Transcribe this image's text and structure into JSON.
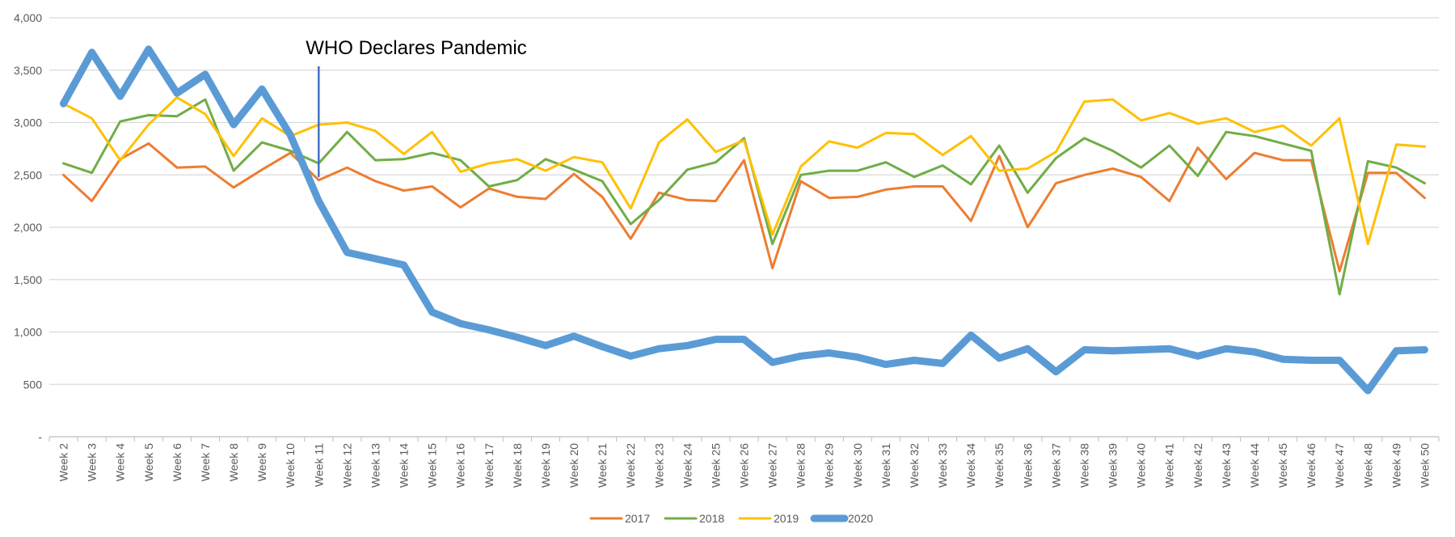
{
  "chart_data": {
    "type": "line",
    "annotation": "WHO Declares Pandemic",
    "annotation_category": "Week 11",
    "ylim": [
      0,
      4000
    ],
    "yticks": [
      0,
      500,
      1000,
      1500,
      2000,
      2500,
      3000,
      3500,
      4000
    ],
    "ytick_labels": [
      "-",
      "500",
      "1,000",
      "1,500",
      "2,000",
      "2,500",
      "3,000",
      "3,500",
      "4,000"
    ],
    "grid": true,
    "legend_position": "bottom",
    "categories": [
      "Week 2",
      "Week 3",
      "Week 4",
      "Week 5",
      "Week 6",
      "Week 7",
      "Week 8",
      "Week 9",
      "Week 10",
      "Week 11",
      "Week 12",
      "Week 13",
      "Week 14",
      "Week 15",
      "Week 16",
      "Week 17",
      "Week 18",
      "Week 19",
      "Week 20",
      "Week 21",
      "Week 22",
      "Week 23",
      "Week 24",
      "Week 25",
      "Week 26",
      "Week 27",
      "Week 28",
      "Week 29",
      "Week 30",
      "Week 31",
      "Week 32",
      "Week 33",
      "Week 34",
      "Week 35",
      "Week 36",
      "Week 37",
      "Week 38",
      "Week 39",
      "Week 40",
      "Week 41",
      "Week 42",
      "Week 43",
      "Week 44",
      "Week 45",
      "Week 46",
      "Week 47",
      "Week 48",
      "Week 49",
      "Week 50"
    ],
    "series": [
      {
        "name": "2017",
        "color": "#ED7D31",
        "width": 3,
        "values": [
          2500,
          2250,
          2650,
          2800,
          2570,
          2580,
          2380,
          2550,
          2710,
          2450,
          2570,
          2440,
          2350,
          2390,
          2190,
          2370,
          2290,
          2270,
          2510,
          2290,
          1890,
          2330,
          2260,
          2250,
          2640,
          1610,
          2440,
          2280,
          2290,
          2360,
          2390,
          2390,
          2060,
          2680,
          2000,
          2420,
          2500,
          2560,
          2480,
          2250,
          2760,
          2460,
          2710,
          2640,
          2640,
          1580,
          2520,
          2520,
          2280
        ]
      },
      {
        "name": "2018",
        "color": "#70AD47",
        "width": 3,
        "values": [
          2610,
          2520,
          3010,
          3070,
          3060,
          3220,
          2540,
          2810,
          2730,
          2610,
          2910,
          2640,
          2650,
          2710,
          2640,
          2390,
          2450,
          2650,
          2550,
          2440,
          2030,
          2260,
          2550,
          2620,
          2850,
          1840,
          2500,
          2540,
          2540,
          2620,
          2480,
          2590,
          2410,
          2780,
          2330,
          2660,
          2850,
          2730,
          2570,
          2780,
          2490,
          2910,
          2870,
          2800,
          2730,
          1360,
          2630,
          2570,
          2420
        ]
      },
      {
        "name": "2019",
        "color": "#FFC000",
        "width": 3,
        "values": [
          3180,
          3040,
          2640,
          2980,
          3240,
          3080,
          2680,
          3040,
          2870,
          2980,
          3000,
          2920,
          2700,
          2910,
          2530,
          2610,
          2650,
          2540,
          2670,
          2620,
          2180,
          2810,
          3030,
          2720,
          2830,
          1930,
          2580,
          2820,
          2760,
          2900,
          2890,
          2690,
          2870,
          2540,
          2560,
          2720,
          3200,
          3220,
          3020,
          3090,
          2990,
          3040,
          2910,
          2970,
          2780,
          3040,
          1840,
          2790,
          2770
        ]
      },
      {
        "name": "2020",
        "color": "#5B9BD5",
        "width": 9,
        "values": [
          3180,
          3670,
          3250,
          3700,
          3280,
          3460,
          2980,
          3320,
          2880,
          2250,
          1760,
          1700,
          1640,
          1190,
          1080,
          1020,
          950,
          870,
          960,
          860,
          770,
          840,
          870,
          930,
          930,
          710,
          770,
          800,
          760,
          690,
          730,
          700,
          970,
          750,
          840,
          620,
          830,
          820,
          830,
          840,
          770,
          840,
          810,
          740,
          730,
          730,
          440,
          820,
          830
        ]
      }
    ]
  }
}
